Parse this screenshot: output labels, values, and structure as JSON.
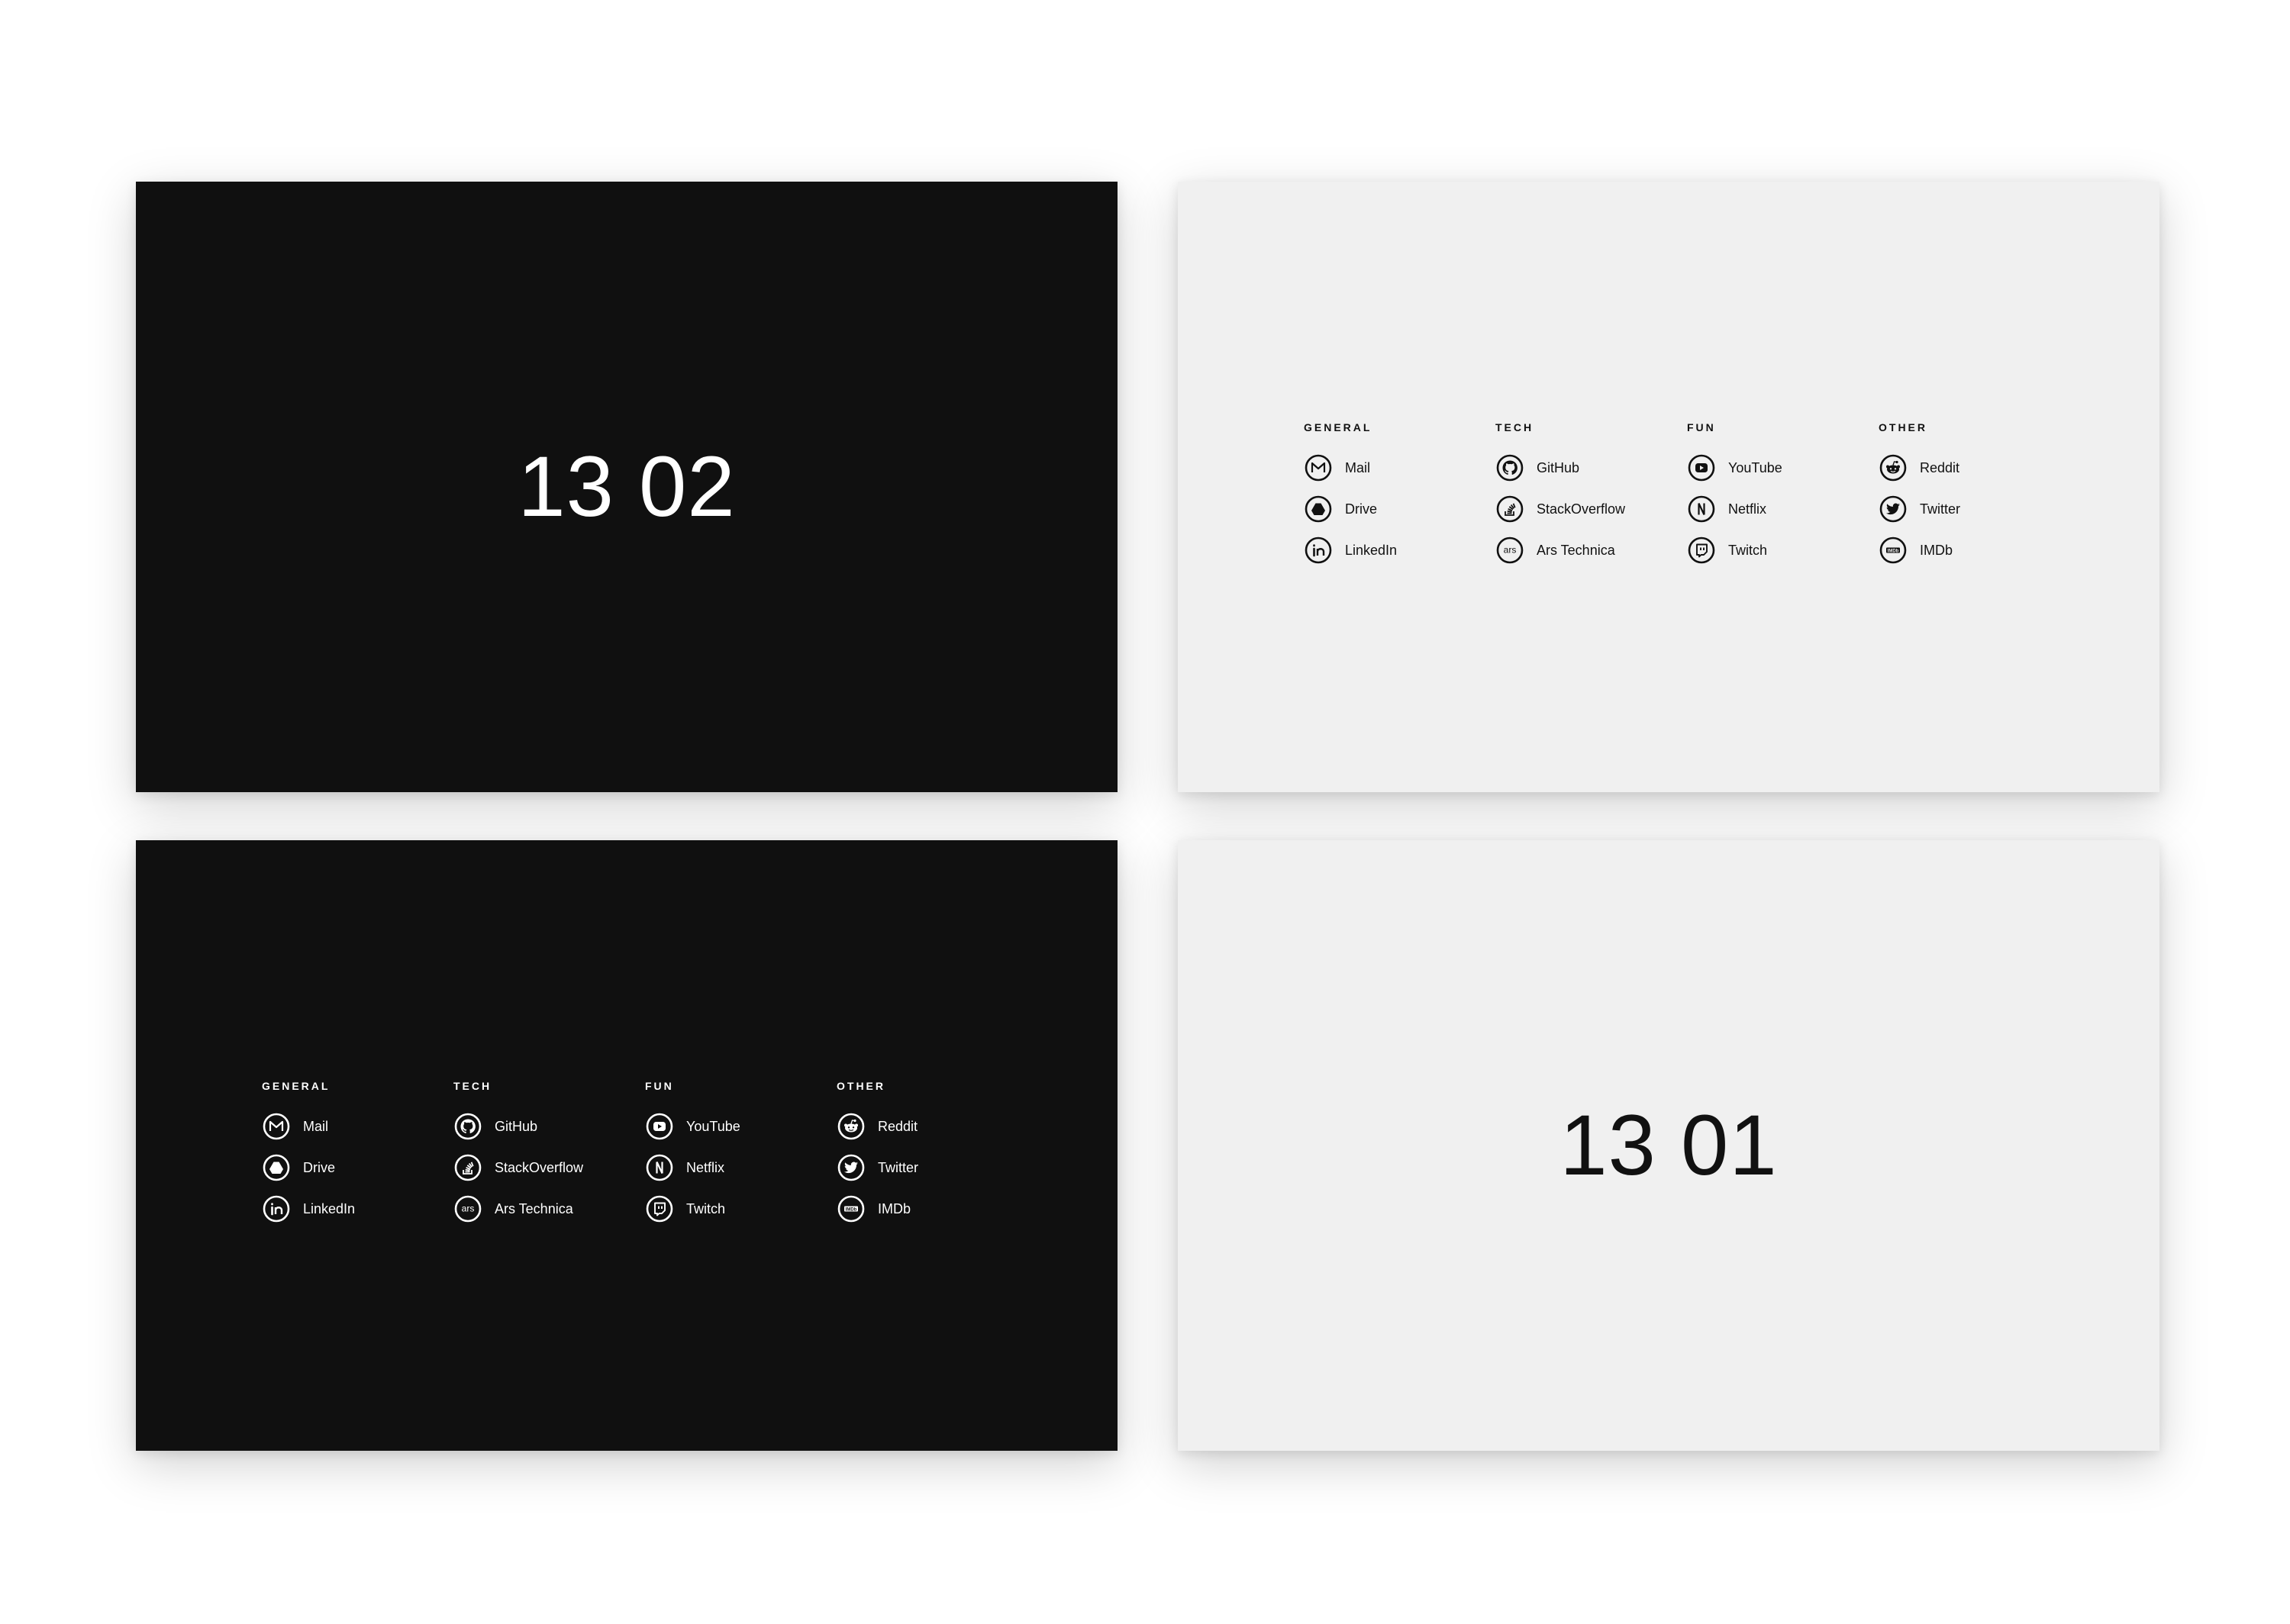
{
  "panels": {
    "top_left": {
      "theme": "dark",
      "time": "13 02"
    },
    "top_right": {
      "theme": "light"
    },
    "bottom_left": {
      "theme": "dark"
    },
    "bottom_right": {
      "theme": "light",
      "time": "13 01"
    }
  },
  "colors": {
    "dark_bg": "#101010",
    "light_bg": "#f0f0f0",
    "dark_text": "#ffffff",
    "light_text": "#111111",
    "page_bg": "#ffffff"
  },
  "links": {
    "general": {
      "title": "GENERAL",
      "items": [
        {
          "label": "Mail",
          "icon": "mail-icon"
        },
        {
          "label": "Drive",
          "icon": "drive-icon"
        },
        {
          "label": "LinkedIn",
          "icon": "linkedin-icon"
        }
      ]
    },
    "tech": {
      "title": "TECH",
      "items": [
        {
          "label": "GitHub",
          "icon": "github-icon"
        },
        {
          "label": "StackOverflow",
          "icon": "stackoverflow-icon"
        },
        {
          "label": "Ars Technica",
          "icon": "ars-technica-icon",
          "icon_text": "ars"
        }
      ]
    },
    "fun": {
      "title": "FUN",
      "items": [
        {
          "label": "YouTube",
          "icon": "youtube-icon"
        },
        {
          "label": "Netflix",
          "icon": "netflix-icon"
        },
        {
          "label": "Twitch",
          "icon": "twitch-icon"
        }
      ]
    },
    "other": {
      "title": "OTHER",
      "items": [
        {
          "label": "Reddit",
          "icon": "reddit-icon"
        },
        {
          "label": "Twitter",
          "icon": "twitter-icon"
        },
        {
          "label": "IMDb",
          "icon": "imdb-icon",
          "icon_text": "IMDb"
        }
      ]
    }
  }
}
